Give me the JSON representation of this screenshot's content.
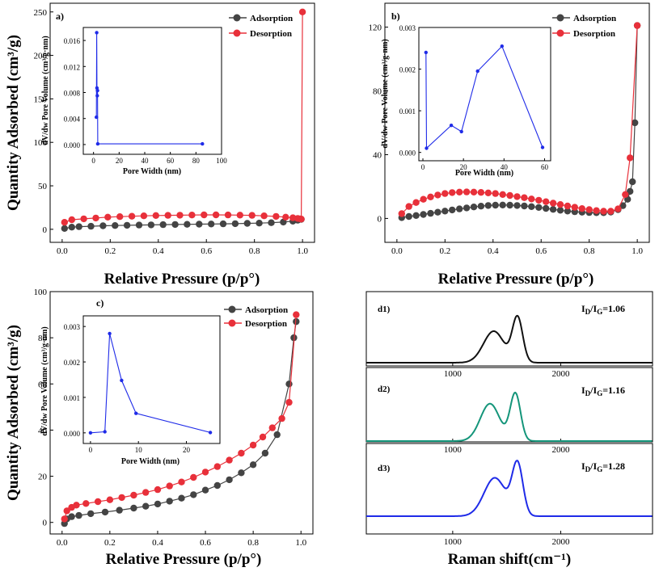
{
  "chart_data": [
    {
      "id": "a",
      "type": "line",
      "panel_label": "a)",
      "xlabel": "Relative Pressure (p/p°)",
      "ylabel": "Quantity Adsorbed (cm³/g)",
      "xlim": [
        -0.05,
        1.05
      ],
      "ylim": [
        -15,
        260
      ],
      "x_ticks": [
        0.0,
        0.2,
        0.4,
        0.6,
        0.8,
        1.0
      ],
      "x_tick_labels": [
        "0.0",
        "0.2",
        "0.4",
        "0.6",
        "0.8",
        "1.0"
      ],
      "y_ticks": [
        0,
        50,
        100,
        150,
        200,
        250
      ],
      "y_tick_labels": [
        "0",
        "50",
        "100",
        "150",
        "200",
        "250"
      ],
      "legend_position": "top-right",
      "series": [
        {
          "name": "Adsorption",
          "color": "#444444",
          "x": [
            0.01,
            0.04,
            0.07,
            0.12,
            0.17,
            0.22,
            0.27,
            0.32,
            0.37,
            0.42,
            0.47,
            0.52,
            0.57,
            0.62,
            0.67,
            0.72,
            0.77,
            0.82,
            0.87,
            0.92,
            0.96,
            0.98,
            0.995
          ],
          "y": [
            1,
            2.5,
            3,
            3.5,
            4,
            4.3,
            4.6,
            4.9,
            5.1,
            5.3,
            5.5,
            5.7,
            5.9,
            6.1,
            6.3,
            6.5,
            6.8,
            7.1,
            7.6,
            8.3,
            9.3,
            10.5,
            11.5
          ]
        },
        {
          "name": "Desorption",
          "color": "#e8303a",
          "x": [
            0.01,
            0.04,
            0.09,
            0.14,
            0.19,
            0.24,
            0.29,
            0.34,
            0.39,
            0.44,
            0.49,
            0.54,
            0.59,
            0.64,
            0.69,
            0.74,
            0.79,
            0.84,
            0.89,
            0.93,
            0.96,
            0.98,
            0.99,
            0.995,
            1.0
          ],
          "y": [
            8,
            11,
            12,
            13,
            14,
            14.5,
            15,
            15.5,
            15.8,
            16,
            16.2,
            16.4,
            16.6,
            16.6,
            16.5,
            16.3,
            16,
            15.5,
            14.8,
            14,
            13.2,
            12.5,
            12,
            11.8,
            250
          ]
        }
      ],
      "inset": {
        "xlabel": "Pore Width (nm)",
        "ylabel": "dV/dw Pore Volume (cm³/g·nm)",
        "xlim": [
          -8,
          100
        ],
        "ylim": [
          -0.0015,
          0.018
        ],
        "x_ticks": [
          0,
          20,
          40,
          60,
          80,
          100
        ],
        "x_tick_labels": [
          "0",
          "20",
          "40",
          "60",
          "80",
          "100"
        ],
        "y_ticks": [
          0.0,
          0.004,
          0.008,
          0.012,
          0.016
        ],
        "y_tick_labels": [
          "0.000",
          "0.004",
          "0.008",
          "0.012",
          "0.016"
        ],
        "series": [
          {
            "color": "#1f2be8",
            "x": [
              2.2,
              2.5,
              2.7,
              2.9,
              3.1,
              3.3,
              85
            ],
            "y": [
              0.0042,
              0.0172,
              0.0087,
              0.0075,
              0.0083,
              0.0001,
              0.0001
            ]
          }
        ]
      }
    },
    {
      "id": "b",
      "type": "line",
      "panel_label": "b)",
      "xlabel": "Relative Pressure (p/p°)",
      "ylabel": "",
      "xlim": [
        -0.05,
        1.05
      ],
      "ylim": [
        -15,
        135
      ],
      "x_ticks": [
        0.0,
        0.2,
        0.4,
        0.6,
        0.8,
        1.0
      ],
      "x_tick_labels": [
        "0.0",
        "0.2",
        "0.4",
        "0.6",
        "0.8",
        "1.0"
      ],
      "y_ticks": [
        0,
        40,
        80,
        120
      ],
      "y_tick_labels": [
        "0",
        "40",
        "80",
        "120"
      ],
      "legend_position": "top-right",
      "series": [
        {
          "name": "Adsorption",
          "color": "#444444",
          "x": [
            0.02,
            0.05,
            0.08,
            0.11,
            0.14,
            0.17,
            0.2,
            0.23,
            0.26,
            0.29,
            0.32,
            0.35,
            0.38,
            0.41,
            0.44,
            0.47,
            0.5,
            0.53,
            0.56,
            0.59,
            0.62,
            0.65,
            0.68,
            0.71,
            0.74,
            0.77,
            0.8,
            0.83,
            0.86,
            0.89,
            0.92,
            0.94,
            0.96,
            0.97,
            0.98,
            0.99,
            1.0
          ],
          "y": [
            0.5,
            1.2,
            1.8,
            2.5,
            3.2,
            3.9,
            4.6,
            5.3,
            6,
            6.6,
            7.2,
            7.7,
            8.1,
            8.3,
            8.4,
            8.3,
            8.1,
            7.8,
            7.4,
            6.9,
            6.3,
            5.7,
            5.1,
            4.6,
            4.2,
            3.9,
            3.7,
            3.6,
            3.6,
            4,
            5.5,
            8,
            12,
            17,
            23,
            60,
            121
          ]
        },
        {
          "name": "Desorption",
          "color": "#e8303a",
          "x": [
            0.02,
            0.05,
            0.08,
            0.11,
            0.14,
            0.17,
            0.2,
            0.23,
            0.26,
            0.29,
            0.32,
            0.35,
            0.38,
            0.41,
            0.44,
            0.47,
            0.5,
            0.53,
            0.56,
            0.59,
            0.62,
            0.65,
            0.68,
            0.71,
            0.74,
            0.77,
            0.8,
            0.83,
            0.86,
            0.89,
            0.92,
            0.95,
            0.97,
            1.0
          ],
          "y": [
            3,
            7.5,
            10,
            12,
            13.5,
            14.7,
            15.6,
            16.2,
            16.5,
            16.6,
            16.5,
            16.3,
            16,
            15.6,
            15,
            14.4,
            13.7,
            13,
            12.2,
            11.4,
            10.5,
            9.6,
            8.7,
            7.8,
            7,
            6.2,
            5.5,
            4.9,
            4.5,
            4.5,
            6,
            15,
            38,
            121
          ]
        }
      ],
      "inset": {
        "xlabel": "Pore Width (nm)",
        "ylabel": "dV/dw Pore Volume (cm³/g·nm)",
        "xlim": [
          -2,
          63
        ],
        "ylim": [
          -0.0002,
          0.003
        ],
        "x_ticks": [
          0,
          20,
          40,
          60
        ],
        "x_tick_labels": [
          "0",
          "20",
          "40",
          "60"
        ],
        "y_ticks": [
          0.0,
          0.001,
          0.002,
          0.003
        ],
        "y_tick_labels": [
          "0.000",
          "0.001",
          "0.002",
          "0.003"
        ],
        "series": [
          {
            "color": "#1f2be8",
            "x": [
              1.5,
              1.8,
              14,
              19,
              27,
              39,
              59
            ],
            "y": [
              0.0024,
              0.0001,
              0.00065,
              0.0005,
              0.00195,
              0.00255,
              0.00012
            ]
          }
        ]
      }
    },
    {
      "id": "c",
      "type": "line",
      "panel_label": "c)",
      "xlabel": "Relative Pressure (p/p°)",
      "ylabel": "Quantity Adsorbed (cm³/g)",
      "xlim": [
        -0.05,
        1.05
      ],
      "ylim": [
        -5,
        100
      ],
      "x_ticks": [
        0.0,
        0.2,
        0.4,
        0.6,
        0.8,
        1.0
      ],
      "x_tick_labels": [
        "0.0",
        "0.2",
        "0.4",
        "0.6",
        "0.8",
        "1.0"
      ],
      "y_ticks": [
        0,
        20,
        40,
        60,
        80,
        100
      ],
      "y_tick_labels": [
        "0",
        "20",
        "40",
        "60",
        "80",
        "100"
      ],
      "legend_position": "top-right",
      "series": [
        {
          "name": "Adsorption",
          "color": "#444444",
          "x": [
            0.01,
            0.02,
            0.04,
            0.07,
            0.12,
            0.18,
            0.24,
            0.3,
            0.35,
            0.4,
            0.45,
            0.5,
            0.55,
            0.6,
            0.65,
            0.7,
            0.75,
            0.8,
            0.85,
            0.9,
            0.95,
            0.97,
            0.98
          ],
          "y": [
            -0.5,
            1.5,
            2.5,
            3,
            3.8,
            4.5,
            5.3,
            6.2,
            7,
            8,
            9.2,
            10.5,
            12,
            14,
            16,
            18.5,
            21.5,
            25,
            30,
            38,
            60,
            80,
            87
          ]
        },
        {
          "name": "Desorption",
          "color": "#e8303a",
          "x": [
            0.01,
            0.02,
            0.04,
            0.06,
            0.1,
            0.15,
            0.2,
            0.25,
            0.3,
            0.35,
            0.4,
            0.45,
            0.5,
            0.55,
            0.6,
            0.65,
            0.7,
            0.75,
            0.8,
            0.84,
            0.88,
            0.92,
            0.95,
            0.98
          ],
          "y": [
            1.5,
            5,
            6.5,
            7.5,
            8.2,
            9,
            9.8,
            10.8,
            11.8,
            13,
            14.2,
            15.8,
            17.5,
            19.5,
            21.8,
            24.2,
            27,
            30,
            33.5,
            37,
            41,
            45,
            52,
            90
          ]
        }
      ],
      "inset": {
        "xlabel": "Pore Width (nm)",
        "ylabel": "dV/dw Pore Volume (cm³/g·nm)",
        "xlim": [
          -1.5,
          27
        ],
        "ylim": [
          -0.0003,
          0.0033
        ],
        "x_ticks": [
          0,
          10,
          20
        ],
        "x_tick_labels": [
          "0",
          "10",
          "20"
        ],
        "y_ticks": [
          0.0,
          0.001,
          0.002,
          0.003
        ],
        "y_tick_labels": [
          "0.000",
          "0.001",
          "0.002",
          "0.003"
        ],
        "series": [
          {
            "color": "#1f2be8",
            "x": [
              0,
              3,
              4,
              6.5,
              9.5,
              25
            ],
            "y": [
              0.0,
              3e-05,
              0.0028,
              0.00148,
              0.00055,
              1e-05
            ]
          }
        ]
      }
    },
    {
      "id": "d",
      "type": "line",
      "xlabel": "Raman shift(cm⁻¹)",
      "xlim": [
        200,
        2850
      ],
      "x_ticks": [
        1000,
        2000
      ],
      "x_tick_labels": [
        "1000",
        "2000"
      ],
      "series": [
        {
          "name": "d1)",
          "ratio_label": "I",
          "ratio_sub1": "D",
          "ratio_mid": "/I",
          "ratio_sub2": "G",
          "ratio_value": "=1.06",
          "color": "#111111",
          "d_center": 1380,
          "g_center": 1600,
          "d_height": 0.62,
          "g_height": 0.88,
          "d_width": 95,
          "g_width": 48
        },
        {
          "name": "d2)",
          "ratio_label": "I",
          "ratio_sub1": "D",
          "ratio_mid": "/I",
          "ratio_sub2": "G",
          "ratio_value": "=1.16",
          "color": "#14957a",
          "d_center": 1345,
          "g_center": 1580,
          "d_height": 0.68,
          "g_height": 0.86,
          "d_width": 90,
          "g_width": 48
        },
        {
          "name": "d3)",
          "ratio_label": "I",
          "ratio_sub1": "D",
          "ratio_mid": "/I",
          "ratio_sub2": "G",
          "ratio_value": "=1.28",
          "color": "#1f2be8",
          "d_center": 1390,
          "g_center": 1600,
          "d_height": 0.66,
          "g_height": 0.88,
          "d_width": 100,
          "g_width": 50
        }
      ]
    }
  ]
}
